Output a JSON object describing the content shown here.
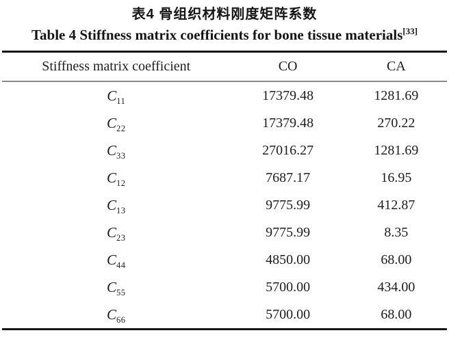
{
  "titles": {
    "zh": "表4 骨组织材料刚度矩阵系数",
    "en": "Table 4  Stiffness matrix coefficients for bone tissue materials",
    "en_ref": "[33]"
  },
  "table": {
    "columns": {
      "coefficient": "Stiffness matrix coefficient",
      "co": "CO",
      "ca": "CA"
    },
    "rows": [
      {
        "sym": "C",
        "sub": "11",
        "co": "17379.48",
        "ca": "1281.69"
      },
      {
        "sym": "C",
        "sub": "22",
        "co": "17379.48",
        "ca": "270.22"
      },
      {
        "sym": "C",
        "sub": "33",
        "co": "27016.27",
        "ca": "1281.69"
      },
      {
        "sym": "C",
        "sub": "12",
        "co": "7687.17",
        "ca": "16.95"
      },
      {
        "sym": "C",
        "sub": "13",
        "co": "9775.99",
        "ca": "412.87"
      },
      {
        "sym": "C",
        "sub": "23",
        "co": "9775.99",
        "ca": "8.35"
      },
      {
        "sym": "C",
        "sub": "44",
        "co": "4850.00",
        "ca": "68.00"
      },
      {
        "sym": "C",
        "sub": "55",
        "co": "5700.00",
        "ca": "434.00"
      },
      {
        "sym": "C",
        "sub": "66",
        "co": "5700.00",
        "ca": "68.00"
      }
    ]
  },
  "colors": {
    "background": "#ffffff",
    "text": "#1c1c1c",
    "rule_heavy": "#151515",
    "rule_light": "#8a8a8a"
  }
}
